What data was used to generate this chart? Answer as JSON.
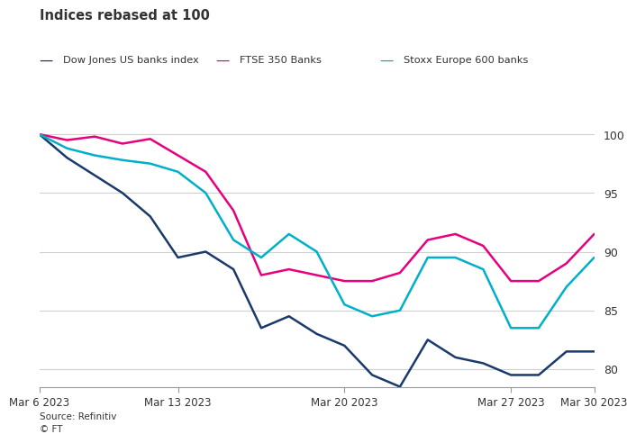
{
  "title": "Indices rebased at 100",
  "source": "Source: Refinitiv",
  "footnote": "© FT",
  "background_color": "#ffffff",
  "plot_bg_color": "#ffffff",
  "text_color": "#333333",
  "grid_color": "#d0d0d0",
  "axis_color": "#999999",
  "x_labels": [
    "Mar 6 2023",
    "Mar 13 2023",
    "Mar 20 2023",
    "Mar 27 2023",
    "Mar 30 2023"
  ],
  "x_positions": [
    0,
    5,
    11,
    17,
    20
  ],
  "ylim": [
    78.5,
    101.5
  ],
  "yticks": [
    80,
    85,
    90,
    95,
    100
  ],
  "n_points": 21,
  "series": [
    {
      "name": "Dow Jones US banks index",
      "color": "#1a3a6b",
      "linewidth": 1.8,
      "y": [
        100,
        98.0,
        96.5,
        95.0,
        93.0,
        89.5,
        90.0,
        88.5,
        83.5,
        84.5,
        83.0,
        82.0,
        79.5,
        78.5,
        82.5,
        81.0,
        80.5,
        79.5,
        79.5,
        81.5,
        81.5
      ]
    },
    {
      "name": "FTSE 350 Banks",
      "color": "#e6007e",
      "linewidth": 1.8,
      "y": [
        100,
        99.5,
        99.8,
        99.2,
        99.6,
        98.2,
        96.8,
        93.5,
        88.0,
        88.5,
        88.0,
        87.5,
        87.5,
        88.2,
        91.0,
        91.5,
        90.5,
        87.5,
        87.5,
        89.0,
        91.5
      ]
    },
    {
      "name": "Stoxx Europe 600 banks",
      "color": "#00b0c8",
      "linewidth": 1.8,
      "y": [
        100,
        98.8,
        98.2,
        97.8,
        97.5,
        96.8,
        95.0,
        91.0,
        89.5,
        91.5,
        90.0,
        85.5,
        84.5,
        85.0,
        89.5,
        89.5,
        88.5,
        83.5,
        83.5,
        87.0,
        89.5
      ]
    }
  ]
}
